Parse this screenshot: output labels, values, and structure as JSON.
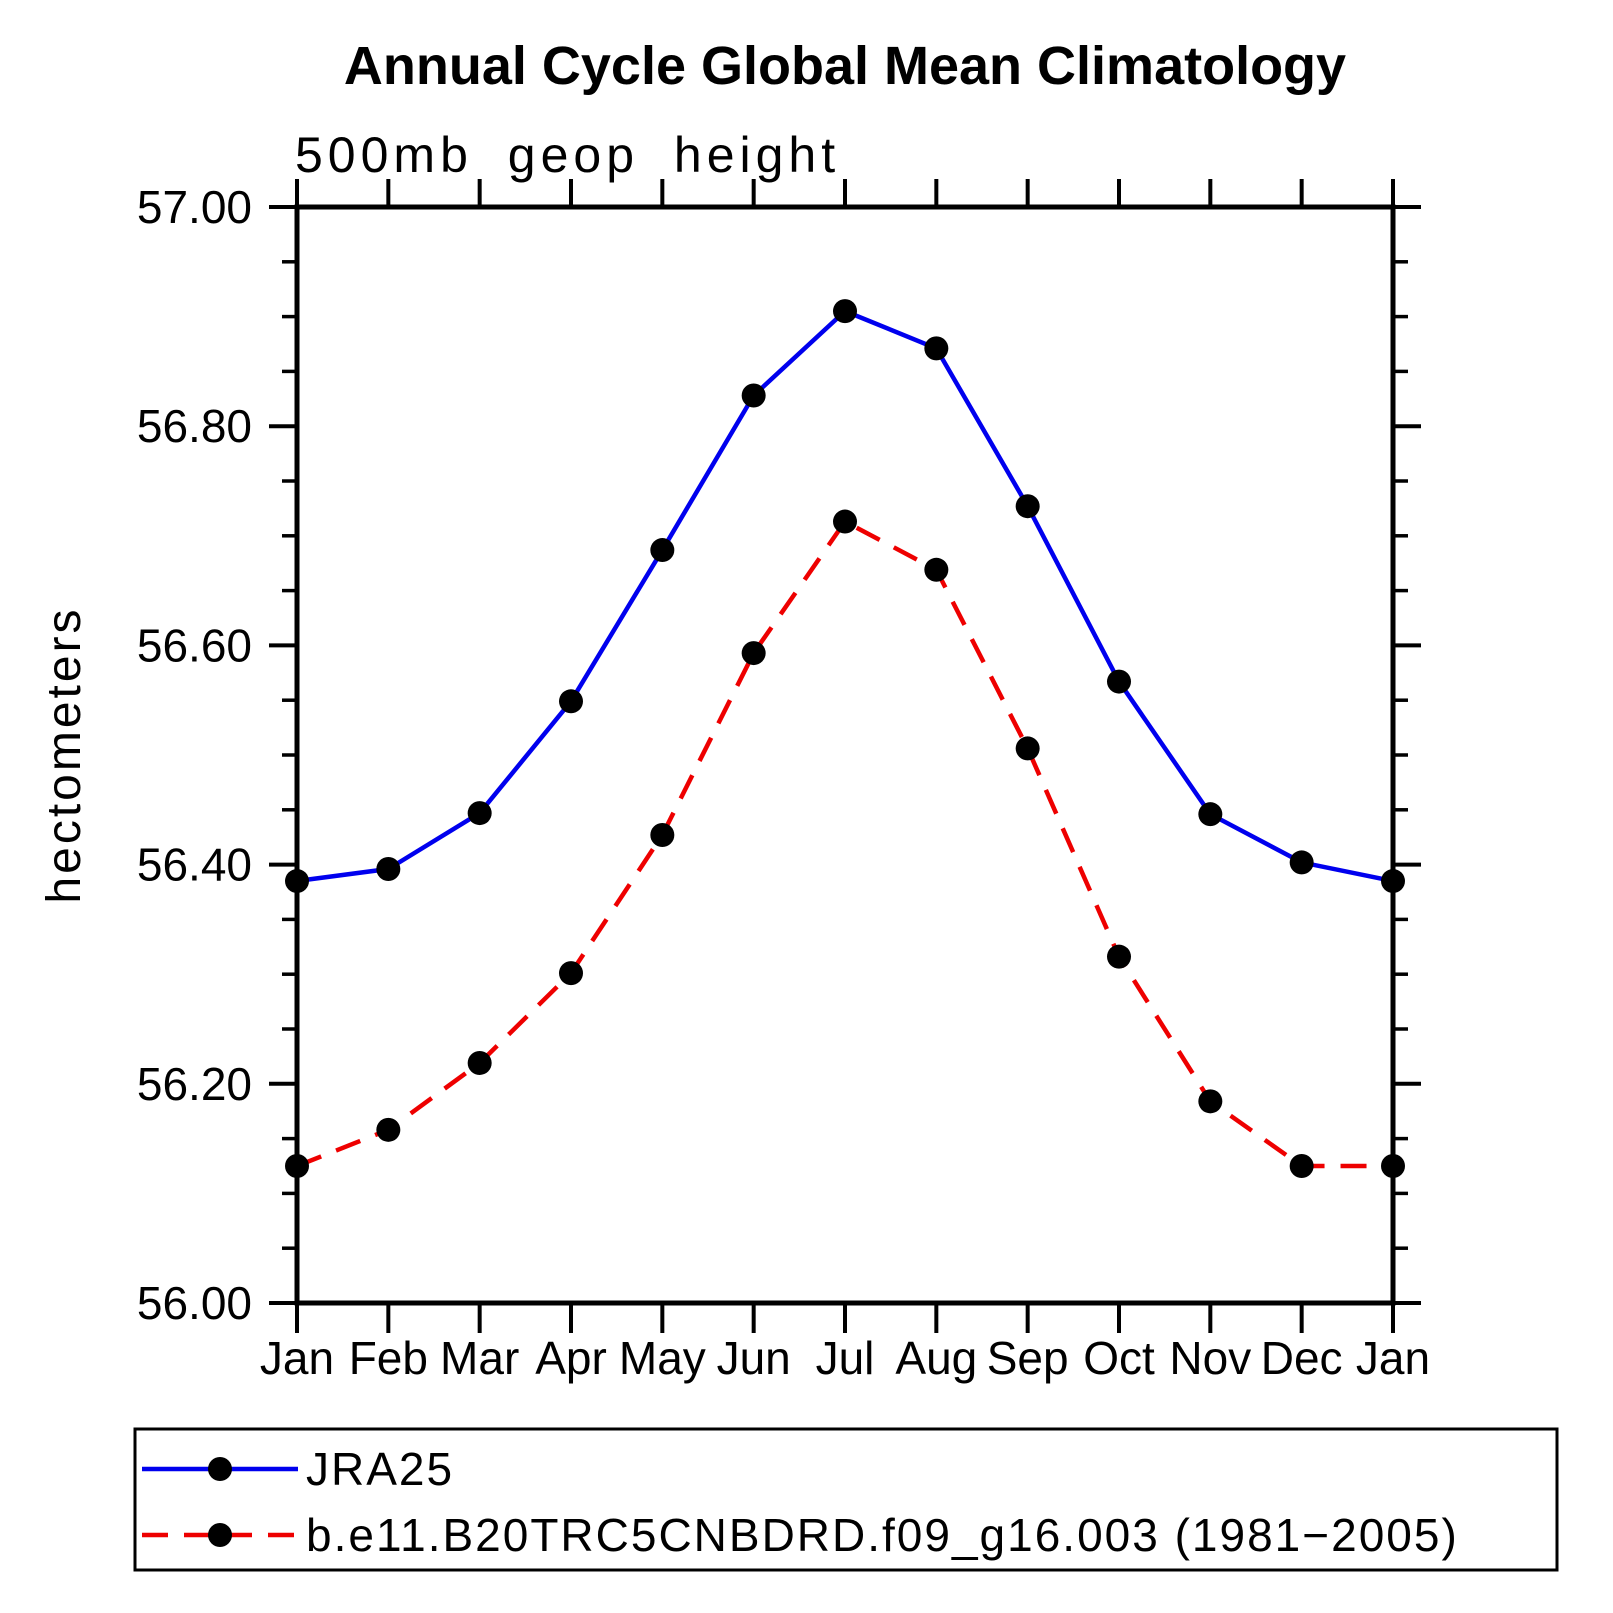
{
  "title": "Annual Cycle Global Mean Climatology",
  "chart_data": {
    "type": "line",
    "title": "Annual Cycle Global Mean Climatology",
    "subtitle": "500mb geop height",
    "ylabel": "hectometers",
    "xlabel": "",
    "categories": [
      "Jan",
      "Feb",
      "Mar",
      "Apr",
      "May",
      "Jun",
      "Jul",
      "Aug",
      "Sep",
      "Oct",
      "Nov",
      "Dec",
      "Jan"
    ],
    "ylim": [
      56.0,
      57.0
    ],
    "ytick_step": 0.2,
    "yminor_step": 0.05,
    "y_tick_labels": [
      "56.00",
      "56.20",
      "56.40",
      "56.60",
      "56.80",
      "57.00"
    ],
    "grid": false,
    "legend_position": "bottom",
    "series": [
      {
        "name": "JRA25",
        "color": "#0000ee",
        "style": "solid",
        "marker": "circle",
        "marker_color": "#000000",
        "values": [
          56.385,
          56.396,
          56.447,
          56.549,
          56.687,
          56.828,
          56.905,
          56.871,
          56.727,
          56.567,
          56.446,
          56.402,
          56.385
        ]
      },
      {
        "name": "b.e11.B20TRC5CNBDRD.f09_g16.003 (1981−2005)",
        "color": "#ee0000",
        "style": "dashed",
        "marker": "circle",
        "marker_color": "#000000",
        "values": [
          56.125,
          56.158,
          56.219,
          56.301,
          56.427,
          56.593,
          56.713,
          56.669,
          56.506,
          56.316,
          56.184,
          56.125,
          56.125
        ]
      }
    ]
  },
  "colors": {
    "axis": "#000000",
    "background": "#ffffff",
    "series_blue": "#0000ee",
    "series_red": "#ee0000",
    "marker": "#000000"
  }
}
